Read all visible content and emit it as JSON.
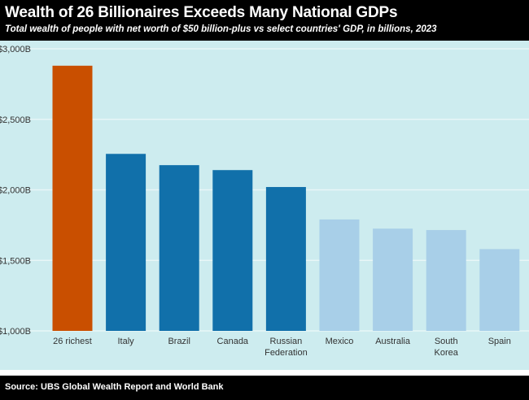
{
  "header": {
    "title": "Wealth of 26 Billionaires Exceeds Many National GDPs",
    "subtitle": "Total wealth of people with net worth of $50 billion-plus vs select countries' GDP, in billions, 2023"
  },
  "footer": {
    "source": "Source: UBS Global Wealth Report and World Bank"
  },
  "colors": {
    "highlight": "#c94f00",
    "dark_blue": "#1170aa",
    "light_blue": "#a8cfe8",
    "background": "#cdecef",
    "grid": "#e8f6f7"
  },
  "chart_data": {
    "type": "bar",
    "categories": [
      [
        "26 richest"
      ],
      [
        "Italy"
      ],
      [
        "Brazil"
      ],
      [
        "Canada"
      ],
      [
        "Russian",
        "Federation"
      ],
      [
        "Mexico"
      ],
      [
        "Australia"
      ],
      [
        "South",
        "Korea"
      ],
      [
        "Spain"
      ]
    ],
    "values": [
      2880,
      2255,
      2175,
      2140,
      2020,
      1790,
      1725,
      1715,
      1580
    ],
    "bar_colors": [
      "highlight",
      "dark_blue",
      "dark_blue",
      "dark_blue",
      "dark_blue",
      "light_blue",
      "light_blue",
      "light_blue",
      "light_blue"
    ],
    "ylim": [
      1000,
      3000
    ],
    "yticks": [
      1000,
      1500,
      2000,
      2500,
      3000
    ],
    "ytick_labels": [
      "$1,000B",
      "$1,500B",
      "$2,000B",
      "$2,500B",
      "$3,000B"
    ],
    "grid": true,
    "legend": "none"
  }
}
